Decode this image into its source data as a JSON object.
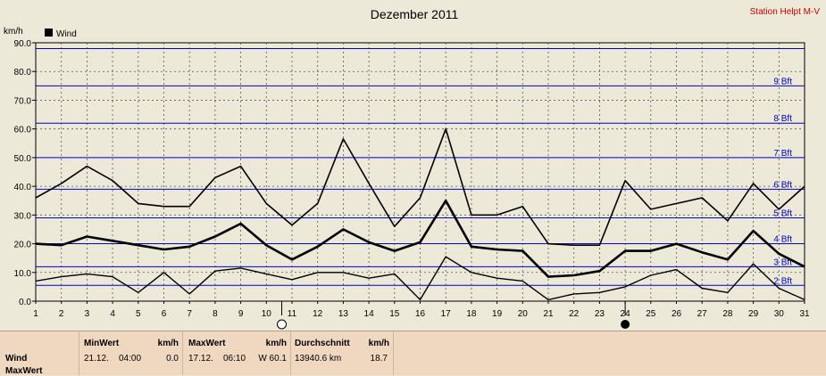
{
  "header": {
    "title": "Dezember 2011",
    "station": "Station Helpt M-V"
  },
  "chart_data": {
    "type": "line",
    "title": "Dezember 2011",
    "ylabel": "km/h",
    "ylim": [
      0,
      90
    ],
    "yticks": [
      "0.0",
      "10.0",
      "20.0",
      "30.0",
      "40.0",
      "50.0",
      "60.0",
      "70.0",
      "80.0",
      "90.0"
    ],
    "x": [
      1,
      2,
      3,
      4,
      5,
      6,
      7,
      8,
      9,
      10,
      11,
      12,
      13,
      14,
      15,
      16,
      17,
      18,
      19,
      20,
      21,
      22,
      23,
      24,
      25,
      26,
      27,
      28,
      29,
      30,
      31
    ],
    "legend": "Wind",
    "series": [
      {
        "values": [
          36,
          41,
          47,
          42,
          34,
          33,
          33,
          43,
          47,
          34,
          26.5,
          34,
          56.5,
          41,
          26,
          36,
          60,
          30,
          30,
          33,
          20,
          19.5,
          19.5,
          42,
          32,
          34,
          36,
          28,
          41,
          32,
          40
        ]
      },
      {
        "values": [
          20,
          19.5,
          22.5,
          21,
          19.5,
          18,
          19,
          22.5,
          27,
          19.5,
          14.5,
          19,
          25,
          20.5,
          17.5,
          20.5,
          35,
          19,
          18,
          17.5,
          8.5,
          9,
          10.5,
          17.5,
          17.5,
          20,
          17,
          14.5,
          24.5,
          16.5,
          12
        ]
      },
      {
        "values": [
          7,
          8.5,
          9.5,
          8.5,
          3,
          10,
          2.5,
          10.5,
          11.5,
          9.5,
          7.5,
          10,
          10,
          8,
          9.5,
          0.5,
          15.5,
          10,
          8,
          7,
          0.5,
          2.5,
          3,
          5,
          9,
          11,
          4.5,
          3,
          13,
          4.5,
          0.5
        ]
      }
    ],
    "bft_lines": [
      {
        "label": "2 Bft",
        "value": 5.5
      },
      {
        "label": "3 Bft",
        "value": 12
      },
      {
        "label": "4 Bft",
        "value": 20
      },
      {
        "label": "5 Bft",
        "value": 29
      },
      {
        "label": "6 Bft",
        "value": 39
      },
      {
        "label": "7 Bft",
        "value": 50
      },
      {
        "label": "8 Bft",
        "value": 62
      },
      {
        "label": "9 Bft",
        "value": 75
      },
      {
        "label": "",
        "value": 88
      }
    ],
    "moon_markers": [
      {
        "day": 10.6,
        "phase": "full-moon-icon"
      },
      {
        "day": 24.0,
        "phase": "new-moon-icon"
      }
    ],
    "colors": {
      "grid_blue": "#0000cc",
      "line": "#000000",
      "bg": "#ece9d8"
    }
  },
  "table": {
    "row_labels": [
      "Wind",
      "MaxWert"
    ],
    "min": {
      "header": "MinWert",
      "unit": "km/h",
      "date": "21.12.",
      "time": "04:00",
      "value": "0.0"
    },
    "max": {
      "header": "MaxWert",
      "unit": "km/h",
      "date": "17.12.",
      "time": "06:10",
      "value": "W 60.1"
    },
    "avg": {
      "header": "Durchschnitt",
      "unit": "km/h",
      "distance": "13940.6 km",
      "value": "18.7"
    }
  }
}
